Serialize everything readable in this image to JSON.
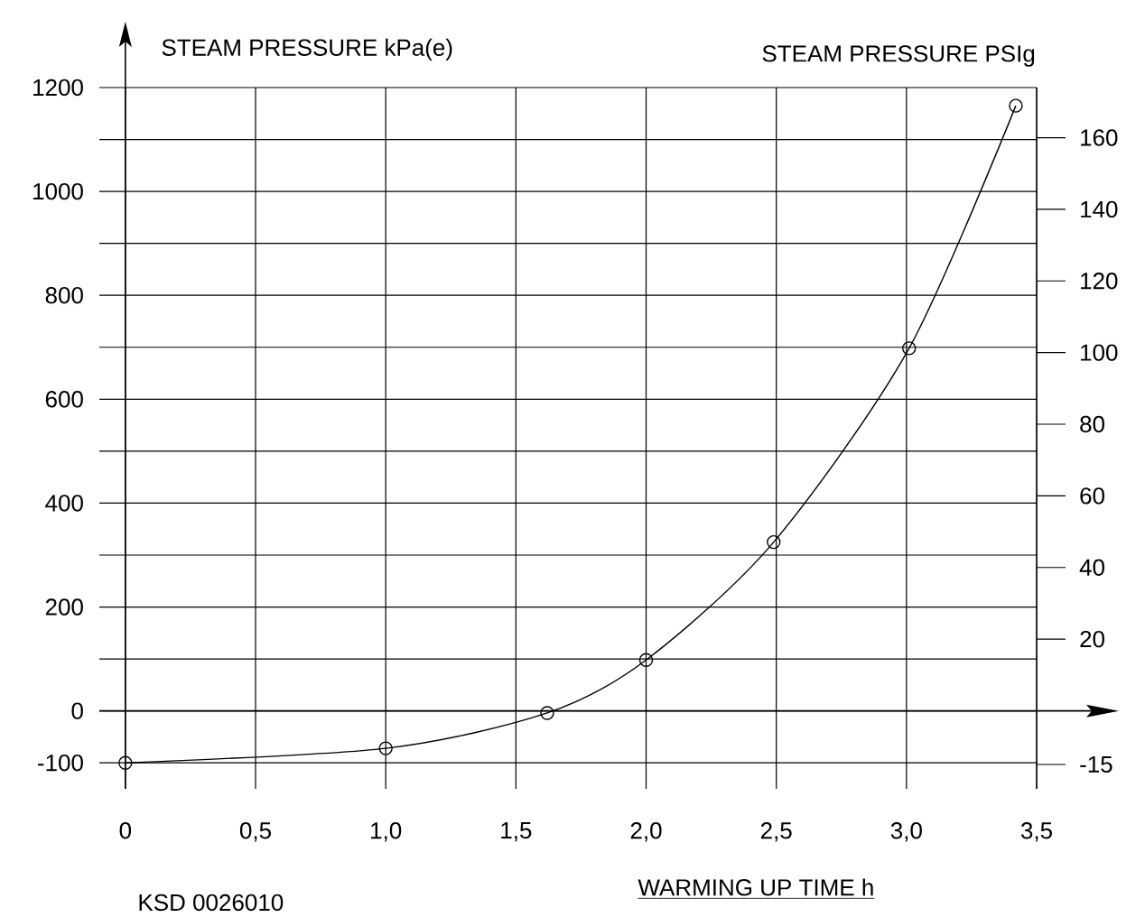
{
  "chart_data": {
    "type": "line",
    "xlabel": "WARMING UP TIME h",
    "ylabel": "STEAM PRESSURE kPa(e)",
    "y2label": "STEAM PRESSURE PSIg",
    "annotations": [
      "KSD 0026010"
    ],
    "x": [
      0,
      1.0,
      1.62,
      2.0,
      2.49,
      3.01,
      3.42
    ],
    "series": [
      {
        "color": "#000000",
        "values": [
          -100,
          -72,
          -4,
          98,
          325,
          698,
          1165
        ]
      }
    ],
    "xlim": [
      -0.1,
      3.5
    ],
    "xticks": [
      0,
      {
        "value": 0.5,
        "label": "0,5"
      },
      {
        "value": 1.0,
        "label": "1,0"
      },
      {
        "value": 1.5,
        "label": "1,5"
      },
      {
        "value": 2.0,
        "label": "2,0"
      },
      {
        "value": 2.5,
        "label": "2,5"
      },
      {
        "value": 3.0,
        "label": "3,0"
      },
      {
        "value": 3.5,
        "label": "3,5"
      }
    ],
    "ylim": [
      -150,
      1200
    ],
    "yticks": [
      -100,
      0,
      {
        "value": 100,
        "label": null
      },
      200,
      {
        "value": 300,
        "label": null
      },
      400,
      {
        "value": 500,
        "label": null
      },
      600,
      {
        "value": 700,
        "label": null
      },
      800,
      {
        "value": 900,
        "label": null
      },
      1000,
      {
        "value": 1100,
        "label": null
      },
      1200
    ],
    "y2lim": [
      -21.8,
      174.0
    ],
    "y2ticks": [
      -15,
      20,
      40,
      60,
      80,
      100,
      120,
      140,
      160
    ],
    "grid": true,
    "marker": "circle",
    "line_style": "solid"
  }
}
